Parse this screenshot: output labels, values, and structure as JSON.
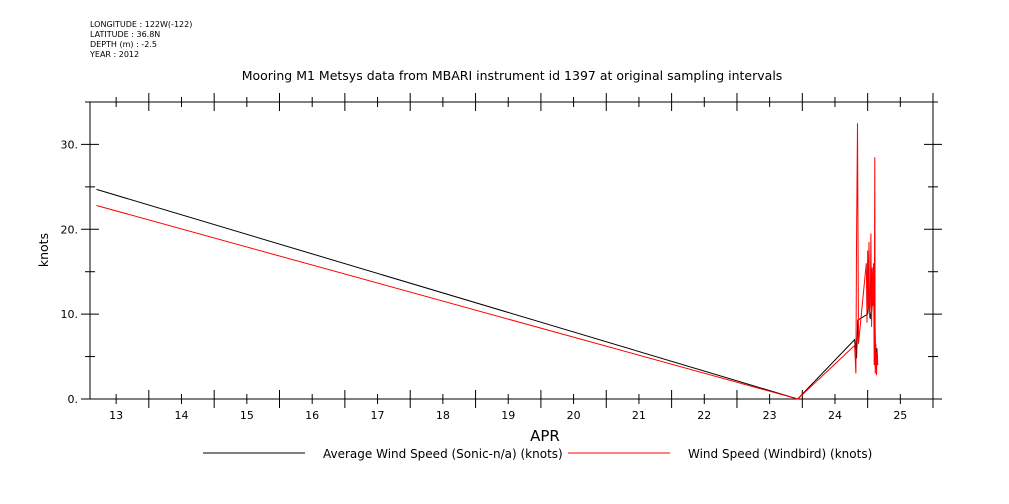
{
  "meta": {
    "longitude": "LONGITUDE : 122W(-122)",
    "latitude": "LATITUDE : 36.8N",
    "depth": "DEPTH (m) : -2.5",
    "year": "YEAR : 2012"
  },
  "chart_data": {
    "type": "line",
    "title": "Mooring M1 Metsys data from MBARI instrument id 1397 at original sampling intervals",
    "xlabel": "APR",
    "ylabel": "knots",
    "xlim": [
      12.6,
      25.5
    ],
    "ylim": [
      0,
      35
    ],
    "x_ticks": [
      13,
      14,
      15,
      16,
      17,
      18,
      19,
      20,
      21,
      22,
      23,
      24,
      25
    ],
    "x_tick_labels": [
      "13",
      "14",
      "15",
      "16",
      "17",
      "18",
      "19",
      "20",
      "21",
      "22",
      "23",
      "24",
      "25"
    ],
    "y_ticks": [
      0,
      10,
      20,
      30
    ],
    "y_tick_labels": [
      "0.",
      "10.",
      "20.",
      "30."
    ],
    "grid": false,
    "legend_position": "bottom",
    "series": [
      {
        "name": "Average Wind Speed (Sonic-n/a) (knots)",
        "color": "#000000",
        "x": [
          12.7,
          23.43,
          24.3,
          24.33,
          24.35,
          24.5,
          24.52,
          24.55,
          24.57,
          24.6,
          24.62,
          24.64,
          24.65
        ],
        "y": [
          24.7,
          0.0,
          7.0,
          4.8,
          9.3,
          10.0,
          11.5,
          9.4,
          11.0,
          15.0,
          4.8,
          6.0,
          4.8
        ]
      },
      {
        "name": "Wind Speed (Windbird) (knots)",
        "color": "#ff0000",
        "x": [
          12.7,
          23.43,
          24.3,
          24.32,
          24.33,
          24.345,
          24.36,
          24.48,
          24.49,
          24.5,
          24.51,
          24.52,
          24.53,
          24.54,
          24.55,
          24.56,
          24.57,
          24.58,
          24.59,
          24.6,
          24.61,
          24.615,
          24.625,
          24.635,
          24.645,
          24.655
        ],
        "y": [
          22.8,
          0.0,
          6.3,
          3.0,
          18.0,
          32.5,
          6.5,
          16.0,
          9.0,
          17.5,
          10.5,
          18.5,
          9.5,
          11.0,
          19.5,
          8.5,
          15.5,
          11.0,
          16.0,
          4.0,
          28.5,
          3.0,
          6.5,
          2.8,
          5.5,
          4.0
        ]
      }
    ]
  }
}
